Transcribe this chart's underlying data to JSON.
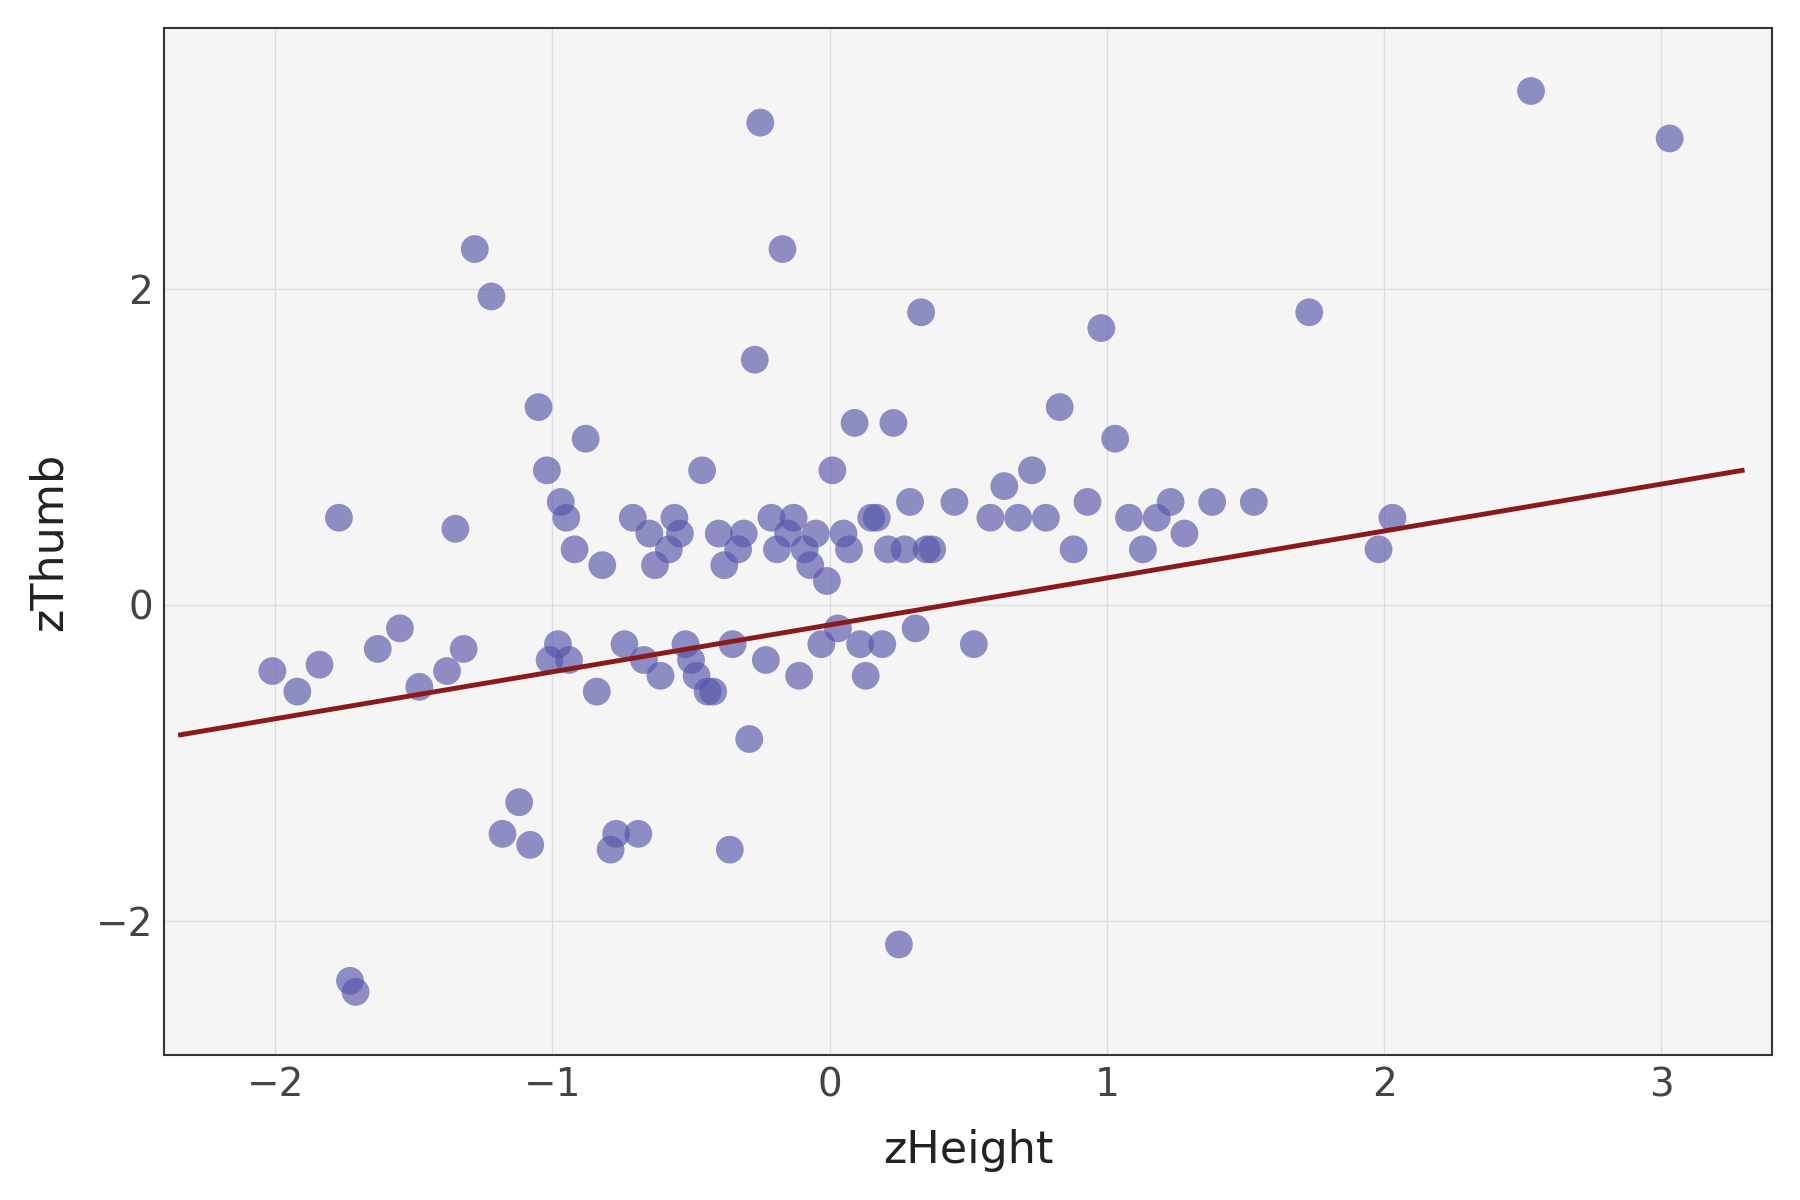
{
  "title": "",
  "xlabel": "zHeight",
  "ylabel": "zThumb",
  "xlim": [
    -2.4,
    3.4
  ],
  "ylim": [
    -2.85,
    3.65
  ],
  "xticks": [
    -2,
    -1,
    0,
    1,
    2,
    3
  ],
  "yticks": [
    -2,
    0,
    2
  ],
  "bg_color": "#ffffff",
  "panel_bg": "#f5f5f5",
  "grid_color": "#dddddd",
  "point_color": "#5555aa",
  "point_alpha": 0.65,
  "point_size": 400,
  "line_color": "#8b1a1a",
  "line_width": 3.5,
  "reg_x0": -2.35,
  "reg_x1": 3.3,
  "reg_slope": 0.297,
  "reg_intercept": -0.128,
  "x": [
    -2.01,
    -1.92,
    -1.84,
    -1.77,
    -1.73,
    -1.71,
    -1.63,
    -1.55,
    -1.48,
    -1.38,
    -1.35,
    -1.32,
    -1.28,
    -1.22,
    -1.18,
    -1.12,
    -1.08,
    -1.05,
    -1.02,
    -1.01,
    -0.98,
    -0.97,
    -0.95,
    -0.94,
    -0.92,
    -0.88,
    -0.84,
    -0.82,
    -0.79,
    -0.77,
    -0.74,
    -0.71,
    -0.69,
    -0.67,
    -0.65,
    -0.63,
    -0.61,
    -0.58,
    -0.56,
    -0.54,
    -0.52,
    -0.5,
    -0.48,
    -0.46,
    -0.44,
    -0.42,
    -0.4,
    -0.38,
    -0.36,
    -0.35,
    -0.33,
    -0.31,
    -0.29,
    -0.27,
    -0.25,
    -0.23,
    -0.21,
    -0.19,
    -0.17,
    -0.15,
    -0.13,
    -0.11,
    -0.09,
    -0.07,
    -0.05,
    -0.03,
    -0.01,
    0.01,
    0.03,
    0.05,
    0.07,
    0.09,
    0.11,
    0.13,
    0.15,
    0.17,
    0.19,
    0.21,
    0.23,
    0.25,
    0.27,
    0.29,
    0.31,
    0.33,
    0.35,
    0.37,
    0.45,
    0.52,
    0.58,
    0.63,
    0.68,
    0.73,
    0.78,
    0.83,
    0.88,
    0.93,
    0.98,
    1.03,
    1.08,
    1.13,
    1.18,
    1.23,
    1.28,
    1.38,
    1.53,
    1.73,
    1.98,
    2.03,
    2.53,
    3.03
  ],
  "y": [
    -0.42,
    -0.55,
    -0.38,
    0.55,
    -2.38,
    -2.45,
    -0.28,
    -0.15,
    -0.52,
    -0.42,
    0.48,
    -0.28,
    2.25,
    1.95,
    -1.45,
    -1.25,
    -1.52,
    1.25,
    0.85,
    -0.35,
    -0.25,
    0.65,
    0.55,
    -0.35,
    0.35,
    1.05,
    -0.55,
    0.25,
    -1.55,
    -1.45,
    -0.25,
    0.55,
    -1.45,
    -0.35,
    0.45,
    0.25,
    -0.45,
    0.35,
    0.55,
    0.45,
    -0.25,
    -0.35,
    -0.45,
    0.85,
    -0.55,
    -0.55,
    0.45,
    0.25,
    -1.55,
    -0.25,
    0.35,
    0.45,
    -0.85,
    1.55,
    3.05,
    -0.35,
    0.55,
    0.35,
    2.25,
    0.45,
    0.55,
    -0.45,
    0.35,
    0.25,
    0.45,
    -0.25,
    0.15,
    0.85,
    -0.15,
    0.45,
    0.35,
    1.15,
    -0.25,
    -0.45,
    0.55,
    0.55,
    -0.25,
    0.35,
    1.15,
    -2.15,
    0.35,
    0.65,
    -0.15,
    1.85,
    0.35,
    0.35,
    0.65,
    -0.25,
    0.55,
    0.75,
    0.55,
    0.85,
    0.55,
    1.25,
    0.35,
    0.65,
    1.75,
    1.05,
    0.55,
    0.35,
    0.55,
    0.65,
    0.45,
    0.65,
    0.65,
    1.85,
    0.35,
    0.55,
    3.25,
    2.95
  ]
}
